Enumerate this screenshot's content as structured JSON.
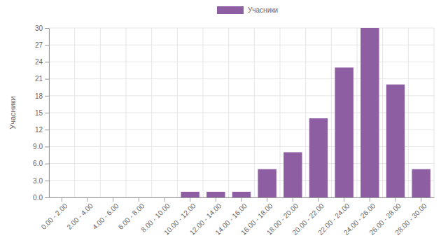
{
  "chart_data": {
    "type": "bar",
    "categories": [
      "0.00 - 2.00",
      "2.00 - 4.00",
      "4.00 - 6.00",
      "6.00 - 8.00",
      "8.00 - 10.00",
      "10.00 - 12.00",
      "12.00 - 14.00",
      "14.00 - 16.00",
      "16.00 - 18.00",
      "18.00 - 20.00",
      "20.00 - 22.00",
      "22.00 - 24.00",
      "24.00 - 26.00",
      "26.00 - 28.00",
      "28.00 - 30.00"
    ],
    "series": [
      {
        "name": "Учасники",
        "color": "#8e5ea2",
        "values": [
          0,
          0,
          0,
          0,
          0,
          1,
          1,
          1,
          5,
          8,
          14,
          23,
          30,
          20,
          5
        ]
      }
    ],
    "ylabel": "Учасники",
    "ylim": [
      0,
      30
    ],
    "yticks": [
      {
        "value": 0,
        "label": "0.0"
      },
      {
        "value": 3,
        "label": "3.0"
      },
      {
        "value": 6,
        "label": "6.0"
      },
      {
        "value": 9,
        "label": "9.0"
      },
      12,
      15,
      18,
      21,
      24,
      27,
      30
    ],
    "grid": true,
    "legend": "top"
  }
}
